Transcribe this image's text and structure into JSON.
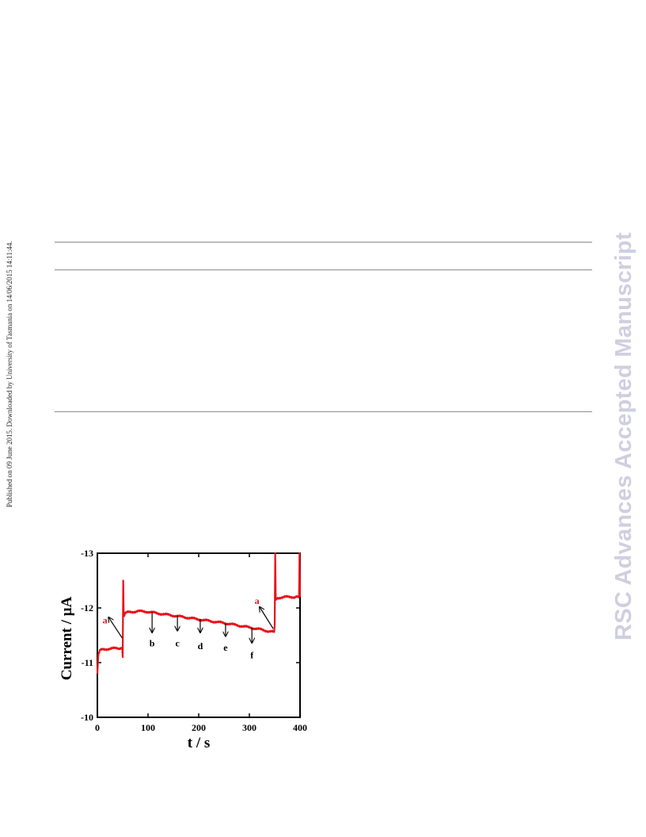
{
  "page": {
    "side_note": "Published on 09 June 2015. Downloaded by University of Tasmania on 14/06/2015 14:11:44.",
    "watermark": "RSC Advances Accepted Manuscript"
  },
  "chart_data": {
    "type": "line",
    "xlabel": "t / s",
    "ylabel": "Current / µA",
    "xlim": [
      0,
      400
    ],
    "ylim": [
      -13,
      -10
    ],
    "y_inverted": true,
    "xticks": [
      0,
      100,
      200,
      300,
      400
    ],
    "yticks": [
      -13,
      -12,
      -11,
      -10
    ],
    "grid": false,
    "series": [
      {
        "color": "#e8121a",
        "x": [
          0,
          2,
          5,
          10,
          20,
          30,
          40,
          49,
          50,
          51,
          52,
          53,
          54,
          55,
          60,
          70,
          80,
          100,
          120,
          150,
          180,
          200,
          230,
          260,
          290,
          320,
          340,
          349,
          350,
          351,
          352,
          353,
          354,
          355,
          360,
          370,
          380,
          390,
          398,
          399,
          400
        ],
        "y": [
          -10.8,
          -11.15,
          -11.22,
          -11.24,
          -11.25,
          -11.26,
          -11.26,
          -11.27,
          -11.1,
          -12.5,
          -11.9,
          -11.85,
          -11.88,
          -11.9,
          -11.92,
          -11.93,
          -11.94,
          -11.93,
          -11.9,
          -11.86,
          -11.82,
          -11.79,
          -11.75,
          -11.71,
          -11.66,
          -11.61,
          -11.57,
          -11.56,
          -11.7,
          -13,
          -12.2,
          -12.15,
          -12.17,
          -12.18,
          -12.19,
          -12.2,
          -12.2,
          -12.2,
          -12.2,
          -13,
          -12.2
        ]
      }
    ],
    "annotations": [
      {
        "label": "a",
        "color": "#e8121a",
        "x": 15,
        "y": -11.72
      },
      {
        "label": "b",
        "color": "#000000",
        "x": 108,
        "y": -11.3
      },
      {
        "label": "c",
        "color": "#000000",
        "x": 158,
        "y": -11.3
      },
      {
        "label": "d",
        "color": "#000000",
        "x": 203,
        "y": -11.25
      },
      {
        "label": "e",
        "color": "#000000",
        "x": 253,
        "y": -11.22
      },
      {
        "label": "f",
        "color": "#000000",
        "x": 305,
        "y": -11.08
      },
      {
        "label": "a",
        "color": "#e8121a",
        "x": 315,
        "y": -12.07
      }
    ]
  }
}
